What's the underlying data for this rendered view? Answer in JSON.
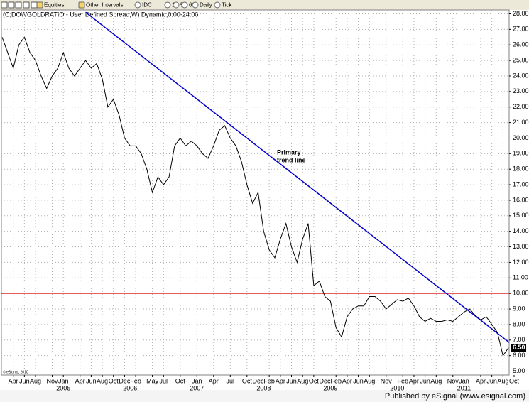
{
  "toolbar": [
    "Equities",
    "Other Intervals",
    "IDC",
    "1",
    "5",
    "60",
    "Daily",
    "Tick"
  ],
  "footer": "Published by eSignal (www.esignal.com)",
  "copyright": "© eSignal, 2010",
  "chart_data": {
    "type": "line",
    "title": "(C,DOWGOLDRATIO - User Defined Spread,W) Dynamic,0:00-24:00",
    "x": [
      "2004-02",
      "2004-03",
      "2004-04",
      "2004-05",
      "2004-06",
      "2004-07",
      "2004-08",
      "2004-09",
      "2004-10",
      "2004-11",
      "2004-12",
      "2005-01",
      "2005-02",
      "2005-03",
      "2005-04",
      "2005-05",
      "2005-06",
      "2005-07",
      "2005-08",
      "2005-09",
      "2005-10",
      "2005-11",
      "2005-12",
      "2006-01",
      "2006-02",
      "2006-03",
      "2006-04",
      "2006-05",
      "2006-06",
      "2006-07",
      "2006-08",
      "2006-09",
      "2006-10",
      "2006-11",
      "2006-12",
      "2007-01",
      "2007-02",
      "2007-03",
      "2007-04",
      "2007-05",
      "2007-06",
      "2007-07",
      "2007-08",
      "2007-09",
      "2007-10",
      "2007-11",
      "2007-12",
      "2008-01",
      "2008-02",
      "2008-03",
      "2008-04",
      "2008-05",
      "2008-06",
      "2008-07",
      "2008-08",
      "2008-09",
      "2008-10",
      "2008-11",
      "2008-12",
      "2009-01",
      "2009-02",
      "2009-03",
      "2009-04",
      "2009-05",
      "2009-06",
      "2009-07",
      "2009-08",
      "2009-09",
      "2009-10",
      "2009-11",
      "2009-12",
      "2010-01",
      "2010-02",
      "2010-03",
      "2010-04",
      "2010-05",
      "2010-06",
      "2010-07",
      "2010-08",
      "2010-09",
      "2010-10",
      "2010-11",
      "2010-12",
      "2011-01",
      "2011-02",
      "2011-03",
      "2011-04",
      "2011-05",
      "2011-06",
      "2011-07",
      "2011-08",
      "2011-09"
    ],
    "series": [
      {
        "name": "DOWGOLDRATIO",
        "color": "#000000",
        "values": [
          26.5,
          25.5,
          24.5,
          26.0,
          26.5,
          25.5,
          25.0,
          24.0,
          23.2,
          24.0,
          24.5,
          25.5,
          24.5,
          24.0,
          24.5,
          25.0,
          24.5,
          24.8,
          23.8,
          22.0,
          22.5,
          21.5,
          20.0,
          19.5,
          19.5,
          19.0,
          18.0,
          16.5,
          17.5,
          17.0,
          17.5,
          19.5,
          20.0,
          19.5,
          19.8,
          19.5,
          19.0,
          18.7,
          19.5,
          20.5,
          20.8,
          20.0,
          19.5,
          18.5,
          17.0,
          15.8,
          16.5,
          14.0,
          12.8,
          12.3,
          13.5,
          14.5,
          13.0,
          12.0,
          13.5,
          14.5,
          10.5,
          10.8,
          9.8,
          9.5,
          7.8,
          7.2,
          8.5,
          9.0,
          9.2,
          9.2,
          9.8,
          9.8,
          9.5,
          9.0,
          9.3,
          9.6,
          9.5,
          9.7,
          9.2,
          8.5,
          8.2,
          8.4,
          8.2,
          8.2,
          8.3,
          8.2,
          8.5,
          8.8,
          9.0,
          8.6,
          8.3,
          8.5,
          8.0,
          7.5,
          6.0,
          6.5
        ]
      }
    ],
    "current_value": {
      "value": 6.5,
      "label": "6.50"
    },
    "trend_line": {
      "color": "#0000cc",
      "x": [
        "2005-05",
        "2011-10"
      ],
      "values": [
        28.1,
        6.6
      ]
    },
    "reference_line": {
      "value": 10,
      "color": "#dd0000"
    },
    "annotation": [
      "Primary",
      "trend line"
    ],
    "xlim": [
      "2004-02",
      "2011-10"
    ],
    "ylim": [
      4.75,
      28.25
    ],
    "xticks": [
      {
        "value": "2004-04",
        "label": "Apr"
      },
      {
        "value": "2004-06",
        "label": "Jun"
      },
      {
        "value": "2004-08",
        "label": "Aug"
      },
      {
        "value": "2004-11",
        "label": "Nov"
      },
      {
        "value": "2005-01",
        "label": "Jan"
      },
      {
        "value": "2005-04",
        "label": "Apr"
      },
      {
        "value": "2005-06",
        "label": "Jun"
      },
      {
        "value": "2005-08",
        "label": "Aug"
      },
      {
        "value": "2005-10",
        "label": "Oct"
      },
      {
        "value": "2005-12",
        "label": "Dec"
      },
      {
        "value": "2006-02",
        "label": "Feb"
      },
      {
        "value": "2006-05",
        "label": "May"
      },
      {
        "value": "2006-07",
        "label": "Jul"
      },
      {
        "value": "2006-10",
        "label": "Oct"
      },
      {
        "value": "2007-01",
        "label": "Jan"
      },
      {
        "value": "2007-04",
        "label": "Apr"
      },
      {
        "value": "2007-07",
        "label": "Jul"
      },
      {
        "value": "2007-10",
        "label": "Oct"
      },
      {
        "value": "2007-12",
        "label": "Dec"
      },
      {
        "value": "2008-02",
        "label": "Feb"
      },
      {
        "value": "2008-04",
        "label": "Apr"
      },
      {
        "value": "2008-06",
        "label": "Jun"
      },
      {
        "value": "2008-08",
        "label": "Aug"
      },
      {
        "value": "2008-10",
        "label": "Oct"
      },
      {
        "value": "2008-12",
        "label": "Dec"
      },
      {
        "value": "2009-02",
        "label": "Feb"
      },
      {
        "value": "2009-04",
        "label": "Apr"
      },
      {
        "value": "2009-06",
        "label": "Jun"
      },
      {
        "value": "2009-08",
        "label": "Aug"
      },
      {
        "value": "2009-11",
        "label": "Nov"
      },
      {
        "value": "2010-02",
        "label": "Feb"
      },
      {
        "value": "2010-04",
        "label": "Apr"
      },
      {
        "value": "2010-06",
        "label": "Jun"
      },
      {
        "value": "2010-08",
        "label": "Aug"
      },
      {
        "value": "2010-11",
        "label": "Nov"
      },
      {
        "value": "2011-01",
        "label": "Jan"
      },
      {
        "value": "2011-04",
        "label": "Apr"
      },
      {
        "value": "2011-06",
        "label": "Jun"
      },
      {
        "value": "2011-08",
        "label": "Aug"
      },
      {
        "value": "2011-10",
        "label": "Oct"
      }
    ],
    "year_ticks": [
      {
        "value": "2005-01",
        "label": "2005"
      },
      {
        "value": "2006-01",
        "label": "2006"
      },
      {
        "value": "2007-01",
        "label": "2007"
      },
      {
        "value": "2008-01",
        "label": "2008"
      },
      {
        "value": "2009-01",
        "label": "2009"
      },
      {
        "value": "2010-01",
        "label": "2010"
      },
      {
        "value": "2011-01",
        "label": "2011"
      }
    ],
    "yticks": [
      {
        "value": 5,
        "label": "5.00"
      },
      {
        "value": 6,
        "label": "6.00"
      },
      {
        "value": 7,
        "label": "7.00"
      },
      {
        "value": 8,
        "label": "8.00"
      },
      {
        "value": 9,
        "label": "9.00"
      },
      {
        "value": 10,
        "label": "10.00"
      },
      {
        "value": 11,
        "label": "11.00"
      },
      {
        "value": 12,
        "label": "12.00"
      },
      {
        "value": 13,
        "label": "13.00"
      },
      {
        "value": 14,
        "label": "14.00"
      },
      {
        "value": 15,
        "label": "15.00"
      },
      {
        "value": 16,
        "label": "16.00"
      },
      {
        "value": 17,
        "label": "17.00"
      },
      {
        "value": 18,
        "label": "18.00"
      },
      {
        "value": 19,
        "label": "19.00"
      },
      {
        "value": 20,
        "label": "20.00"
      },
      {
        "value": 21,
        "label": "21.00"
      },
      {
        "value": 22,
        "label": "22.00"
      },
      {
        "value": 23,
        "label": "23.00"
      },
      {
        "value": 24,
        "label": "24.00"
      },
      {
        "value": 25,
        "label": "25.00"
      },
      {
        "value": 26,
        "label": "26.00"
      },
      {
        "value": 27,
        "label": "27.00"
      },
      {
        "value": 28,
        "label": "28.00"
      }
    ],
    "grid": true
  }
}
